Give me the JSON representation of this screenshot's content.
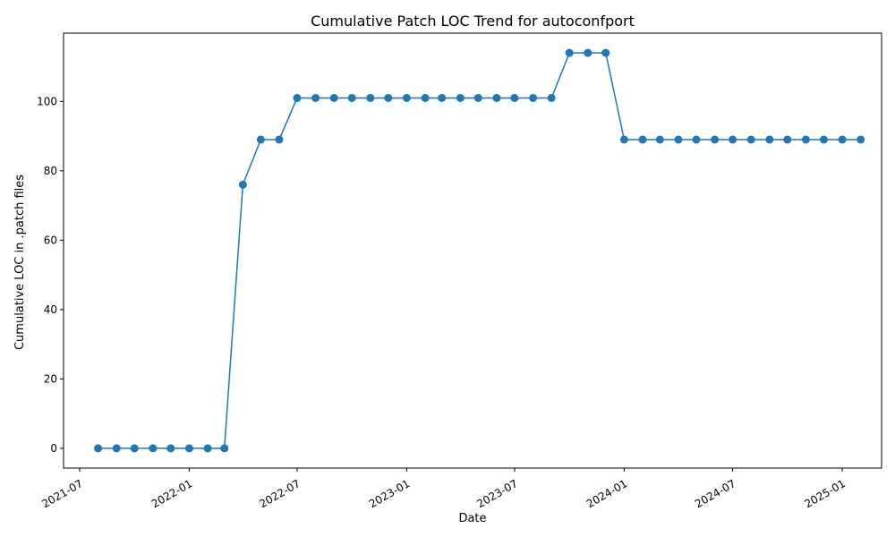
{
  "chart_data": {
    "type": "line",
    "title": "Cumulative Patch LOC Trend for autoconfport",
    "xlabel": "Date",
    "ylabel": "Cumulative LOC in .patch files",
    "xlim": [
      "2021-06-04",
      "2025-03-08"
    ],
    "ylim": [
      -5.7,
      119.7
    ],
    "x_ticks": [
      "2021-07",
      "2022-01",
      "2022-07",
      "2023-01",
      "2023-07",
      "2024-01",
      "2024-07",
      "2025-01"
    ],
    "y_ticks": [
      0,
      20,
      40,
      60,
      80,
      100
    ],
    "grid": false,
    "legend": "none",
    "color": "#1f77b4",
    "series": [
      {
        "x": [
          "2021-08-01",
          "2021-09-01",
          "2021-10-01",
          "2021-11-01",
          "2021-12-01",
          "2022-01-01",
          "2022-02-01",
          "2022-03-01",
          "2022-04-01",
          "2022-05-01",
          "2022-06-01",
          "2022-07-01",
          "2022-08-01",
          "2022-09-01",
          "2022-10-01",
          "2022-11-01",
          "2022-12-01",
          "2023-01-01",
          "2023-02-01",
          "2023-03-01",
          "2023-04-01",
          "2023-05-01",
          "2023-06-01",
          "2023-07-01",
          "2023-08-01",
          "2023-09-01",
          "2023-10-01",
          "2023-11-01",
          "2023-12-01",
          "2024-01-01",
          "2024-02-01",
          "2024-03-01",
          "2024-04-01",
          "2024-05-01",
          "2024-06-01",
          "2024-07-01",
          "2024-08-01",
          "2024-09-01",
          "2024-10-01",
          "2024-11-01",
          "2024-12-01",
          "2025-01-01",
          "2025-02-01"
        ],
        "y": [
          0,
          0,
          0,
          0,
          0,
          0,
          0,
          0,
          76,
          89,
          89,
          101,
          101,
          101,
          101,
          101,
          101,
          101,
          101,
          101,
          101,
          101,
          101,
          101,
          101,
          101,
          114,
          114,
          114,
          89,
          89,
          89,
          89,
          89,
          89,
          89,
          89,
          89,
          89,
          89,
          89,
          89,
          89
        ]
      }
    ]
  }
}
